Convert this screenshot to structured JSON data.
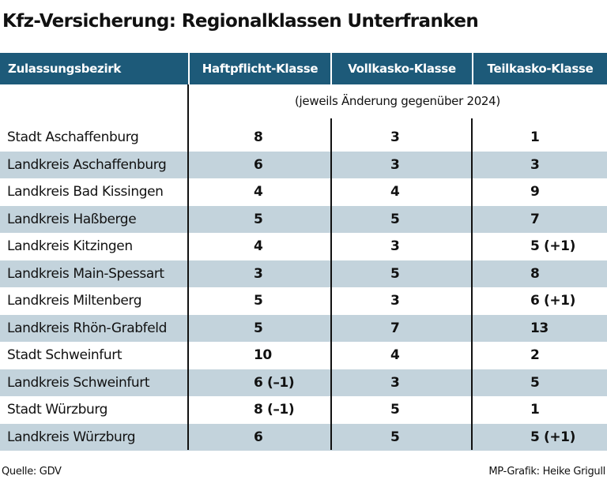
{
  "title": "Kfz-Versicherung: Regionalklassen Unterfranken",
  "note": "(jeweils Änderung gegenüber 2024)",
  "source": "Quelle: GDV",
  "credit": "MP-Grafik: Heike Grigull",
  "colors": {
    "header_bg": "#1d5a79",
    "row_shade": "#c3d3dc",
    "text": "#111111"
  },
  "chart_data": {
    "type": "table",
    "title": "Kfz-Versicherung: Regionalklassen Unterfranken",
    "columns": [
      "Zulassungsbezirk",
      "Haftpflicht-Klasse",
      "Vollkasko-Klasse",
      "Teilkasko-Klasse"
    ],
    "rows": [
      [
        "Stadt Aschaffenburg",
        "8",
        "3",
        "1"
      ],
      [
        "Landkreis Aschaffenburg",
        "6",
        "3",
        "3"
      ],
      [
        "Landkreis Bad Kissingen",
        "4",
        "4",
        "9"
      ],
      [
        "Landkreis Haßberge",
        "5",
        "5",
        "7"
      ],
      [
        "Landkreis Kitzingen",
        "4",
        "3",
        "5 (+1)"
      ],
      [
        "Landkreis Main-Spessart",
        "3",
        "5",
        "8"
      ],
      [
        "Landkreis Miltenberg",
        "5",
        "3",
        "6 (+1)"
      ],
      [
        "Landkreis Rhön-Grabfeld",
        "5",
        "7",
        "13"
      ],
      [
        "Stadt Schweinfurt",
        "10",
        "4",
        "2"
      ],
      [
        "Landkreis Schweinfurt",
        "6 (–1)",
        "3",
        "5"
      ],
      [
        "Stadt Würzburg",
        "8 (–1)",
        "5",
        "1"
      ],
      [
        "Landkreis Würzburg",
        "6",
        "5",
        "5 (+1)"
      ]
    ]
  }
}
